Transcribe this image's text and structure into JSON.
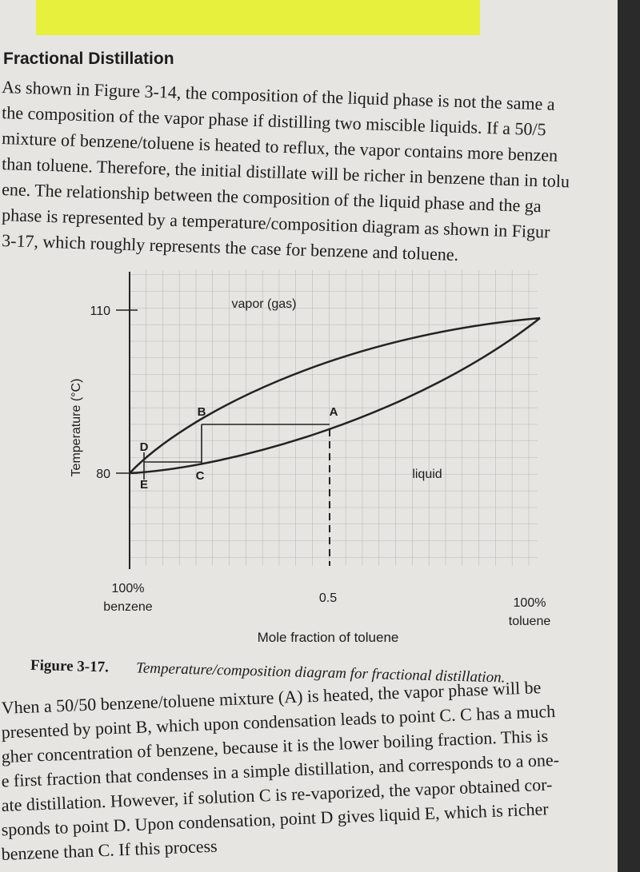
{
  "header": {
    "title": "Fractional Distillation"
  },
  "intro_lines": [
    "As shown in Figure 3-14, the composition of the liquid phase is not the same a",
    "the composition of the vapor phase if distilling two miscible liquids. If a 50/5",
    "mixture of benzene/toluene is heated to reflux, the vapor contains more benzen",
    "than toluene. Therefore, the initial distillate will be richer in benzene than in tolu",
    "ene. The relationship between the composition of the liquid phase and the ga",
    "phase is represented by a temperature/composition diagram as shown in Figur",
    "3-17, which roughly represents the case for benzene and toluene."
  ],
  "figure": {
    "y_axis_label": "Temperature (°C)",
    "y_ticks": [
      "110",
      "80"
    ],
    "region_labels": [
      "vapor (gas)",
      "liquid"
    ],
    "points": [
      "A",
      "B",
      "C",
      "D",
      "E"
    ],
    "x_labels": [
      [
        "100%",
        "benzene"
      ],
      [
        "0.5"
      ],
      [
        "100%",
        "toluene"
      ]
    ],
    "x_axis_label": "Mole fraction of toluene",
    "caption": {
      "number": "Figure 3-17.",
      "text": "Temperature/composition diagram for fractional distillation."
    }
  },
  "body_lines": [
    "Vhen a 50/50 benzene/toluene mixture (A) is heated, the vapor phase will be",
    "presented by point B, which upon condensation leads to point C. C has a much",
    "gher concentration of benzene, because it is the lower boiling fraction. This is",
    "e first fraction that condenses in a simple distillation, and corresponds to a one-",
    "ate distillation. However, if solution C is re-vaporized, the vapor obtained cor-",
    "sponds to point D. Upon condensation, point D gives liquid E, which is richer",
    "benzene than C. If this process"
  ]
}
